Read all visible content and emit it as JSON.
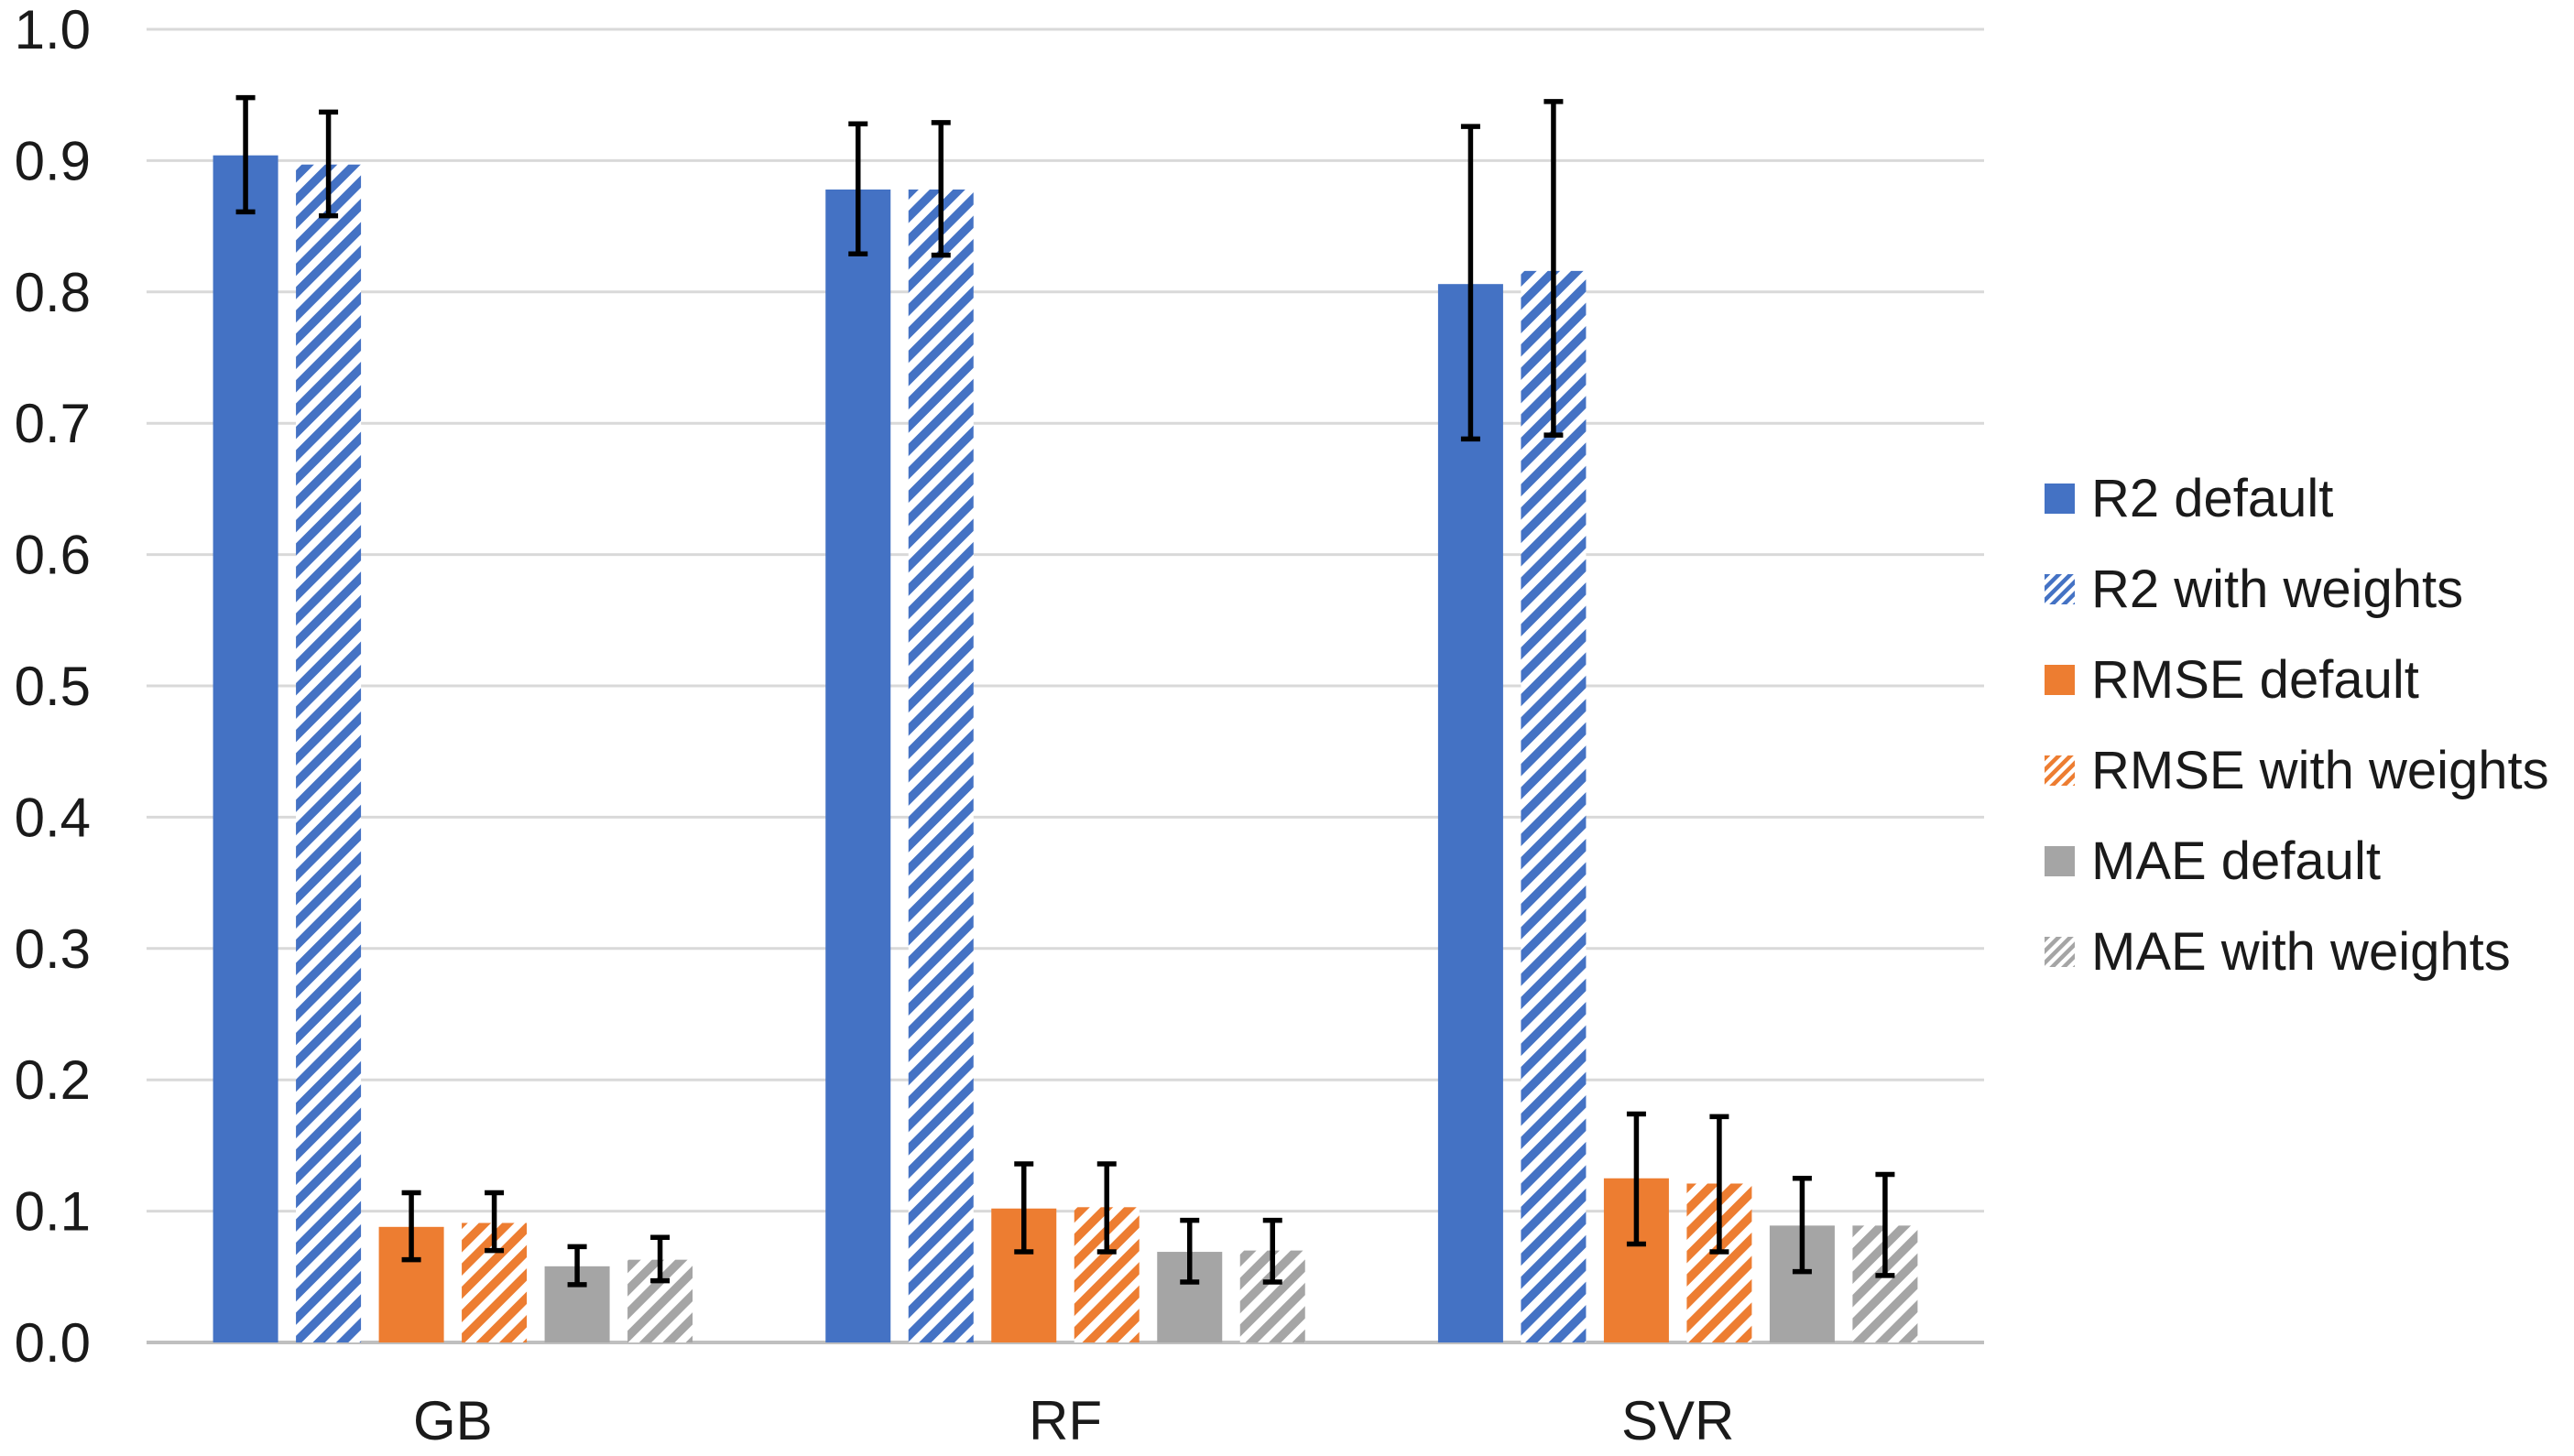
{
  "chart_data": {
    "type": "bar",
    "title": "",
    "xlabel": "",
    "ylabel": "",
    "categories": [
      "GB",
      "RF",
      "SVR"
    ],
    "y_ticks": [
      "1.0",
      "0.9",
      "0.8",
      "0.7",
      "0.6",
      "0.5",
      "0.4",
      "0.3",
      "0.2",
      "0.1",
      "0.0"
    ],
    "ylim": [
      0.0,
      1.0
    ],
    "grid": "horizontal",
    "legend_position": "right",
    "error_bars": true,
    "colors": {
      "blue": "#4472C4",
      "orange": "#ED7D31",
      "gray": "#A5A5A5",
      "gridline": "#D9D9D9",
      "axis_line": "#BFBFBF",
      "error_bar": "#000000",
      "text": "#1A1A1A",
      "background": "#FFFFFF"
    },
    "series": [
      {
        "name": "R2 default",
        "color": "#4472C4",
        "hatch": false,
        "values": [
          0.904,
          0.878,
          0.806
        ],
        "err_plus": [
          0.044,
          0.05,
          0.12
        ],
        "err_minus": [
          0.043,
          0.049,
          0.118
        ]
      },
      {
        "name": "R2 with weights",
        "color": "#4472C4",
        "hatch": true,
        "values": [
          0.897,
          0.878,
          0.816
        ],
        "err_plus": [
          0.04,
          0.051,
          0.129
        ],
        "err_minus": [
          0.039,
          0.05,
          0.125
        ]
      },
      {
        "name": "RMSE default",
        "color": "#ED7D31",
        "hatch": false,
        "values": [
          0.088,
          0.102,
          0.125
        ],
        "err_plus": [
          0.026,
          0.034,
          0.049
        ],
        "err_minus": [
          0.025,
          0.033,
          0.05
        ]
      },
      {
        "name": "RMSE with weights",
        "color": "#ED7D31",
        "hatch": true,
        "values": [
          0.091,
          0.103,
          0.121
        ],
        "err_plus": [
          0.023,
          0.033,
          0.051
        ],
        "err_minus": [
          0.021,
          0.034,
          0.052
        ]
      },
      {
        "name": "MAE default",
        "color": "#A5A5A5",
        "hatch": false,
        "values": [
          0.058,
          0.069,
          0.089
        ],
        "err_plus": [
          0.015,
          0.024,
          0.036
        ],
        "err_minus": [
          0.014,
          0.023,
          0.035
        ]
      },
      {
        "name": "MAE with weights",
        "color": "#A5A5A5",
        "hatch": true,
        "values": [
          0.063,
          0.07,
          0.089
        ],
        "err_plus": [
          0.017,
          0.023,
          0.039
        ],
        "err_minus": [
          0.016,
          0.024,
          0.038
        ]
      }
    ]
  }
}
